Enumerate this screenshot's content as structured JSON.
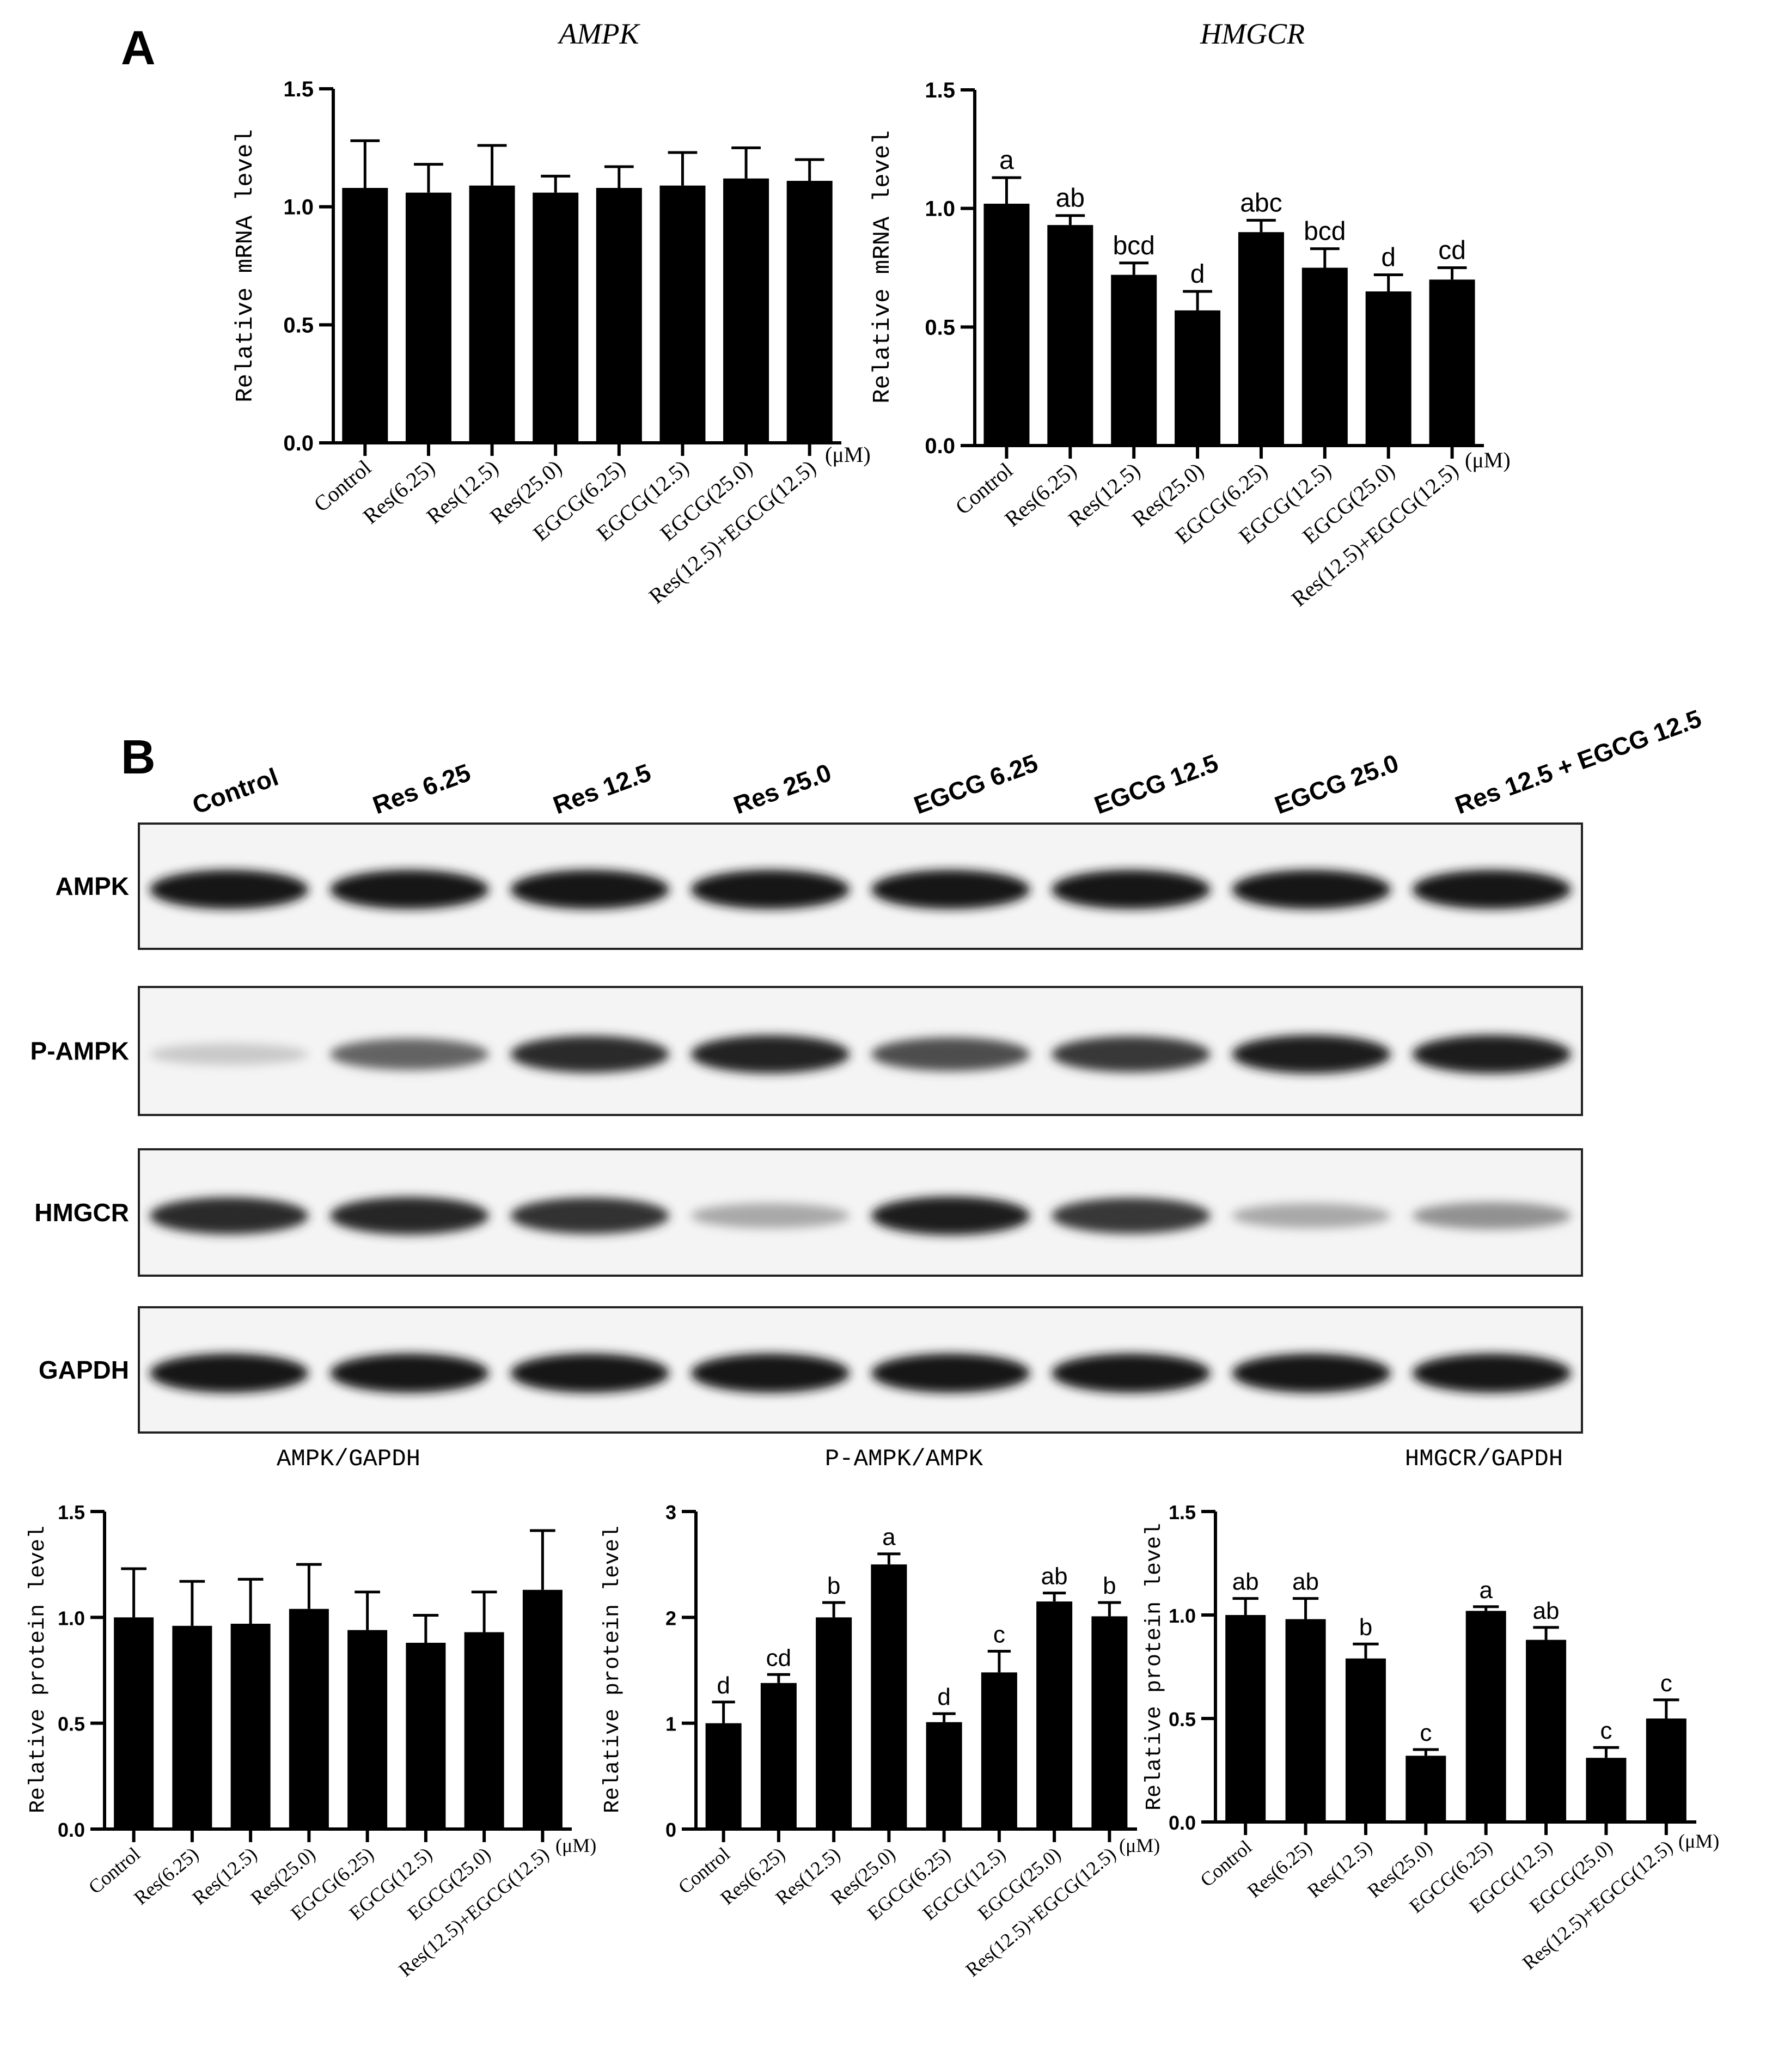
{
  "panel_labels": {
    "a": "A",
    "b": "B"
  },
  "categories": [
    "Control",
    "Res(6.25)",
    "Res(12.5)",
    "Res(25.0)",
    "EGCG(6.25)",
    "EGCG(12.5)",
    "EGCG(25.0)",
    "Res(12.5)+EGCG(12.5)"
  ],
  "unit_label": "(μM)",
  "blot": {
    "lane_labels": [
      "Control",
      "Res 6.25",
      "Res 12.5",
      "Res 25.0",
      "EGCG 6.25",
      "EGCG 12.5",
      "EGCG 25.0",
      "Res 12.5 + EGCG 12.5"
    ],
    "rows": [
      {
        "label": "AMPK",
        "intensity": [
          0.95,
          0.95,
          0.95,
          0.95,
          0.95,
          0.95,
          0.95,
          0.95
        ]
      },
      {
        "label": "P-AMPK",
        "intensity": [
          0.15,
          0.6,
          0.85,
          0.9,
          0.7,
          0.8,
          0.92,
          0.92
        ]
      },
      {
        "label": "HMGCR",
        "intensity": [
          0.85,
          0.88,
          0.82,
          0.3,
          0.92,
          0.8,
          0.3,
          0.4
        ]
      },
      {
        "label": "GAPDH",
        "intensity": [
          0.95,
          0.95,
          0.95,
          0.95,
          0.95,
          0.95,
          0.95,
          0.95
        ]
      }
    ]
  },
  "chart_data": [
    {
      "type": "bar",
      "title": "AMPK",
      "ylabel": "Relative mRNA level",
      "ylim": [
        0,
        1.5
      ],
      "yticks": [
        "0.0",
        "0.5",
        "1.0",
        "1.5"
      ],
      "values": [
        1.08,
        1.06,
        1.09,
        1.06,
        1.08,
        1.09,
        1.12,
        1.11
      ],
      "errors": [
        0.2,
        0.12,
        0.17,
        0.07,
        0.09,
        0.14,
        0.13,
        0.09
      ],
      "letters": [
        "",
        "",
        "",
        "",
        "",
        "",
        "",
        ""
      ]
    },
    {
      "type": "bar",
      "title": "HMGCR",
      "ylabel": "Relative mRNA level",
      "ylim": [
        0,
        1.5
      ],
      "yticks": [
        "0.0",
        "0.5",
        "1.0",
        "1.5"
      ],
      "values": [
        1.02,
        0.93,
        0.72,
        0.57,
        0.9,
        0.75,
        0.65,
        0.7
      ],
      "errors": [
        0.11,
        0.04,
        0.05,
        0.08,
        0.05,
        0.08,
        0.07,
        0.05
      ],
      "letters": [
        "a",
        "ab",
        "bcd",
        "d",
        "abc",
        "bcd",
        "d",
        "cd"
      ]
    },
    {
      "type": "bar",
      "title": "AMPK/GAPDH",
      "ylabel": "Relative protein level",
      "ylim": [
        0,
        1.5
      ],
      "yticks": [
        "0.0",
        "0.5",
        "1.0",
        "1.5"
      ],
      "values": [
        1.0,
        0.96,
        0.97,
        1.04,
        0.94,
        0.88,
        0.93,
        1.13
      ],
      "errors": [
        0.23,
        0.21,
        0.21,
        0.21,
        0.18,
        0.13,
        0.19,
        0.28
      ],
      "letters": [
        "",
        "",
        "",
        "",
        "",
        "",
        "",
        ""
      ]
    },
    {
      "type": "bar",
      "title": "P-AMPK/AMPK",
      "ylabel": "Relative protein level",
      "ylim": [
        0,
        3
      ],
      "yticks": [
        "0",
        "1",
        "2",
        "3"
      ],
      "values": [
        1.0,
        1.38,
        2.0,
        2.5,
        1.01,
        1.48,
        2.15,
        2.01
      ],
      "errors": [
        0.2,
        0.08,
        0.14,
        0.1,
        0.08,
        0.2,
        0.08,
        0.13
      ],
      "letters": [
        "d",
        "cd",
        "b",
        "a",
        "d",
        "c",
        "ab",
        "b"
      ]
    },
    {
      "type": "bar",
      "title": "HMGCR/GAPDH",
      "ylabel": "Relative protein level",
      "ylim": [
        0,
        1.5
      ],
      "yticks": [
        "0.0",
        "0.5",
        "1.0",
        "1.5"
      ],
      "values": [
        1.0,
        0.98,
        0.79,
        0.32,
        1.02,
        0.88,
        0.31,
        0.5
      ],
      "errors": [
        0.08,
        0.1,
        0.07,
        0.03,
        0.02,
        0.06,
        0.05,
        0.09
      ],
      "letters": [
        "ab",
        "ab",
        "b",
        "c",
        "a",
        "ab",
        "c",
        "c"
      ]
    }
  ]
}
